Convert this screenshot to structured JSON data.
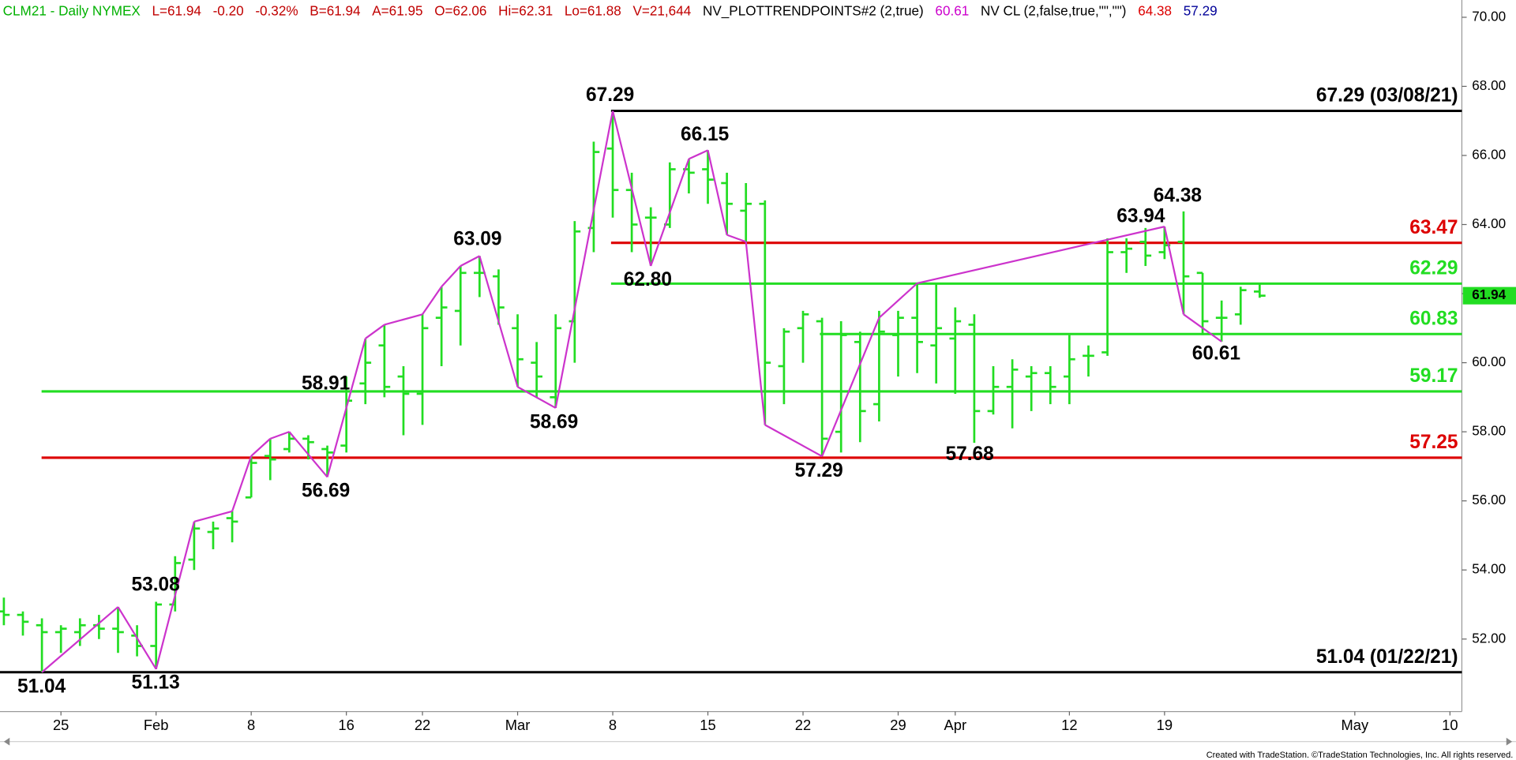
{
  "chart_data": {
    "type": "ohlc",
    "header": [
      {
        "text": "CLM21 - Daily  NYMEX",
        "color": "#00b000"
      },
      {
        "text": "L=61.94",
        "color": "#c00000"
      },
      {
        "text": "-0.20",
        "color": "#c00000"
      },
      {
        "text": "-0.32%",
        "color": "#c00000"
      },
      {
        "text": "B=61.94",
        "color": "#c00000"
      },
      {
        "text": "A=61.95",
        "color": "#c00000"
      },
      {
        "text": "O=62.06",
        "color": "#c00000"
      },
      {
        "text": "Hi=62.31",
        "color": "#c00000"
      },
      {
        "text": "Lo=61.88",
        "color": "#c00000"
      },
      {
        "text": "V=21,644",
        "color": "#c00000"
      },
      {
        "text": "NV_PLOTTRENDPOINTS#2 (2,true)",
        "color": "#000000"
      },
      {
        "text": "60.61",
        "color": "#cc00cc"
      },
      {
        "text": "NV CL (2,false,true,\"\",\"\")",
        "color": "#000000"
      },
      {
        "text": "64.38",
        "color": "#dd0000"
      },
      {
        "text": "57.29",
        "color": "#000099"
      }
    ],
    "categories": [
      null,
      null,
      null,
      "25",
      null,
      null,
      null,
      null,
      "Feb",
      null,
      null,
      null,
      null,
      "8",
      null,
      null,
      null,
      null,
      "16",
      null,
      null,
      null,
      "22",
      null,
      null,
      null,
      null,
      "Mar",
      null,
      null,
      null,
      null,
      "8",
      null,
      null,
      null,
      null,
      "15",
      null,
      null,
      null,
      null,
      "22",
      null,
      null,
      null,
      null,
      "29",
      null,
      null,
      "Apr",
      null,
      null,
      null,
      null,
      null,
      "12",
      null,
      null,
      null,
      null,
      "19",
      null,
      null,
      null,
      null,
      null,
      null,
      null,
      null,
      null,
      "May",
      null,
      null,
      null,
      null,
      "10"
    ],
    "open": [
      52.8,
      52.7,
      52.4,
      52.2,
      52.2,
      52.4,
      52.3,
      52.1,
      51.8,
      53.0,
      54.3,
      55.1,
      55.5,
      56.1,
      57.3,
      57.5,
      57.8,
      57.5,
      57.6,
      59.4,
      60.5,
      59.6,
      59.1,
      61.3,
      61.5,
      62.6,
      62.5,
      61.0,
      60.0,
      59.0,
      61.2,
      63.9,
      66.2,
      65.0,
      64.2,
      64.0,
      65.6,
      65.6,
      65.2,
      64.4,
      64.6,
      59.9,
      61.0,
      61.2,
      58.0,
      60.6,
      58.8,
      60.8,
      61.3,
      60.5,
      60.7,
      61.1,
      58.6,
      59.3,
      59.6,
      59.7,
      59.6,
      60.2,
      60.3,
      63.2,
      63.5,
      63.2,
      63.5,
      62.6,
      61.3,
      61.4,
      62.06,
      null,
      null,
      null,
      null,
      null,
      null,
      null,
      null,
      null,
      null
    ],
    "high": [
      53.2,
      52.8,
      52.6,
      52.4,
      52.6,
      52.7,
      52.93,
      52.4,
      53.08,
      54.4,
      55.4,
      55.4,
      55.7,
      57.3,
      57.8,
      58.0,
      57.9,
      57.6,
      59.6,
      60.7,
      61.1,
      59.9,
      61.4,
      62.2,
      62.8,
      63.09,
      62.7,
      61.4,
      60.6,
      61.4,
      64.1,
      66.4,
      67.29,
      65.5,
      64.5,
      65.8,
      65.9,
      66.15,
      65.5,
      65.2,
      64.7,
      61.0,
      61.5,
      61.3,
      61.2,
      60.9,
      61.5,
      61.5,
      62.3,
      62.3,
      61.6,
      61.4,
      59.9,
      60.1,
      59.9,
      59.9,
      60.8,
      60.5,
      63.6,
      63.6,
      63.9,
      63.94,
      64.38,
      62.6,
      61.8,
      62.2,
      62.31,
      null,
      null,
      null,
      null,
      null,
      null,
      null,
      null,
      null,
      null
    ],
    "low": [
      52.4,
      52.1,
      51.04,
      51.6,
      51.8,
      52.0,
      51.6,
      51.5,
      51.13,
      52.8,
      54.0,
      54.6,
      54.8,
      56.1,
      56.6,
      57.4,
      57.2,
      56.69,
      57.4,
      58.8,
      59.0,
      57.9,
      58.2,
      59.9,
      60.5,
      61.9,
      61.1,
      59.3,
      59.0,
      58.69,
      60.0,
      63.2,
      64.2,
      63.2,
      62.8,
      63.9,
      64.9,
      64.6,
      63.7,
      63.5,
      58.2,
      58.8,
      60.0,
      57.29,
      57.4,
      57.7,
      58.3,
      59.6,
      59.7,
      59.4,
      59.1,
      57.68,
      58.5,
      58.1,
      58.6,
      58.8,
      58.8,
      59.6,
      60.2,
      62.6,
      62.8,
      63.0,
      61.4,
      60.8,
      60.61,
      61.1,
      61.88,
      null,
      null,
      null,
      null,
      null,
      null,
      null,
      null,
      null,
      null
    ],
    "close": [
      52.7,
      52.5,
      52.2,
      52.3,
      52.4,
      52.3,
      52.2,
      51.8,
      53.0,
      54.2,
      55.2,
      55.2,
      55.4,
      57.1,
      57.2,
      57.8,
      57.7,
      57.4,
      58.9,
      60.0,
      59.3,
      59.1,
      61.0,
      61.6,
      62.6,
      62.6,
      61.6,
      60.1,
      59.6,
      61.0,
      63.8,
      66.1,
      65.0,
      64.0,
      64.2,
      65.6,
      65.5,
      65.3,
      64.6,
      64.6,
      60.0,
      60.9,
      61.4,
      57.8,
      60.8,
      58.6,
      60.9,
      61.3,
      60.6,
      61.0,
      61.2,
      58.6,
      59.3,
      59.8,
      59.7,
      59.3,
      60.1,
      60.2,
      63.2,
      63.3,
      63.1,
      63.4,
      62.5,
      61.2,
      61.3,
      62.1,
      61.94,
      null,
      null,
      null,
      null,
      null,
      null,
      null,
      null,
      null,
      null
    ],
    "color": "#22dd22",
    "trend_points": {
      "color": "#cc33cc",
      "values": [
        null,
        null,
        51.04,
        null,
        null,
        null,
        52.93,
        null,
        51.13,
        null,
        55.4,
        null,
        55.7,
        57.3,
        57.8,
        58.0,
        null,
        56.69,
        null,
        60.7,
        61.1,
        null,
        61.4,
        62.2,
        62.8,
        63.09,
        null,
        59.3,
        null,
        58.69,
        null,
        null,
        67.29,
        null,
        62.8,
        null,
        65.9,
        66.15,
        63.7,
        63.5,
        58.2,
        null,
        null,
        57.29,
        null,
        null,
        61.3,
        null,
        62.3,
        null,
        null,
        null,
        null,
        null,
        null,
        null,
        null,
        null,
        null,
        null,
        null,
        63.94,
        61.4,
        null,
        60.61,
        null,
        null,
        null,
        null,
        null,
        null,
        null,
        null,
        null,
        null,
        null,
        null
      ]
    },
    "levels": [
      {
        "value": 67.29,
        "label": "67.29 (03/08/21)",
        "color": "#000000"
      },
      {
        "value": 63.47,
        "color": "#dd0000"
      },
      {
        "value": 62.29,
        "color": "#22dd22"
      },
      {
        "value": 60.83,
        "color": "#22dd22"
      },
      {
        "value": 59.17,
        "color": "#22dd22"
      },
      {
        "value": 57.25,
        "color": "#dd0000"
      },
      {
        "value": 51.04,
        "label": "51.04 (01/22/21)",
        "color": "#000000"
      }
    ],
    "annotations": [
      "67.29",
      "66.15",
      "63.09",
      "62.80",
      "58.91",
      "58.69",
      "56.69",
      "53.08",
      "51.13",
      "51.04",
      "57.29",
      "57.68",
      "63.94",
      "64.38",
      "60.61"
    ],
    "ylim": [
      49.9,
      70.5
    ],
    "yticks": [
      {
        "value": 52,
        "label": "52.00"
      },
      {
        "value": 54,
        "label": "54.00"
      },
      {
        "value": 56,
        "label": "56.00"
      },
      {
        "value": 58,
        "label": "58.00"
      },
      {
        "value": 60,
        "label": "60.00"
      },
      {
        "value": 62,
        "label": "62.00"
      },
      {
        "value": 64,
        "label": "64.00"
      },
      {
        "value": 66,
        "label": "66.00"
      },
      {
        "value": 68,
        "label": "68.00"
      },
      {
        "value": 70,
        "label": "70.00"
      }
    ],
    "footer": "Created with TradeStation. ©TradeStation Technologies, Inc. All rights reserved."
  }
}
